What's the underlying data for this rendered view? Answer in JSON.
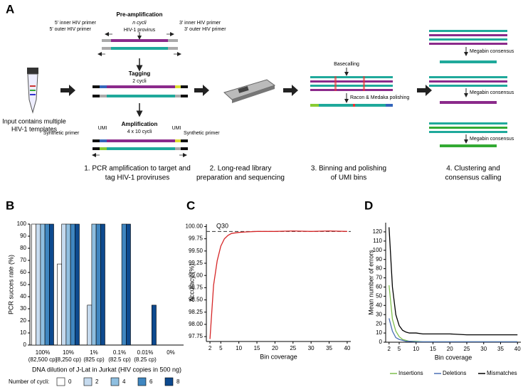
{
  "diagram": {
    "label": "A",
    "input": [
      "Input contains multiple",
      "HIV-1 templates"
    ],
    "preamp": {
      "title": "Pre-amplification",
      "cycles": "n cycli",
      "target": "HIV-1 provirus",
      "inner5": "5' inner HIV primer",
      "outer5": "5' outer HIV primer",
      "inner3": "3' inner HIV primer",
      "outer3": "3' outer HIV primer"
    },
    "tagging": {
      "title": "Tagging",
      "cycles": "2 cycli"
    },
    "amplification": {
      "title": "Amplification",
      "cycles": "4 x 10 cycli",
      "umi_left": "UMI",
      "umi_right": "UMI",
      "primer_left": "Synthetic primer",
      "primer_right": "Synthetic primer"
    },
    "basecalling": "Basecalling",
    "polishing": "Racon & Medaka polishing",
    "megabin": [
      "Megabin consensus",
      "Megabin consensus",
      "Megabin consensus"
    ],
    "steps": [
      [
        "1. PCR amplification to target and",
        "tag HIV-1 proviruses"
      ],
      [
        "2. Long-read library",
        "preparation and sequencing"
      ],
      [
        "3. Binning and polishing",
        "of UMI bins"
      ],
      [
        "4. Clustering and",
        "consensus calling"
      ]
    ]
  },
  "chart_data": [
    {
      "type": "bar",
      "panel": "B",
      "categories": [
        "100%",
        "10%",
        "1%",
        "0.1%",
        "0.01%",
        "0%"
      ],
      "category_copies": [
        "(82,500 cp)",
        "(8,250 cp)",
        "(825 cp)",
        "(82.5 cp)",
        "(8.25 cp)",
        null
      ],
      "x_label": "DNA dilution of J-Lat in Jurkat (HIV copies in 500 ng)",
      "y_label": "PCR succes rate (%)",
      "legend_title": "Number of cycli:",
      "series": [
        {
          "name": "0",
          "color": "#ffffff",
          "values": [
            100,
            67,
            0,
            0,
            0,
            0
          ]
        },
        {
          "name": "2",
          "color": "#c6dbef",
          "values": [
            100,
            100,
            33,
            0,
            0,
            0
          ]
        },
        {
          "name": "4",
          "color": "#8fbfe0",
          "values": [
            100,
            100,
            100,
            0,
            0,
            0
          ]
        },
        {
          "name": "6",
          "color": "#3f86c0",
          "values": [
            100,
            100,
            100,
            100,
            0,
            0
          ]
        },
        {
          "name": "8",
          "color": "#0d4a8f",
          "values": [
            100,
            100,
            100,
            100,
            33,
            0
          ]
        }
      ],
      "ylim": [
        0,
        100
      ],
      "yticks": [
        0,
        10,
        20,
        30,
        40,
        50,
        60,
        70,
        80,
        90,
        100
      ]
    },
    {
      "type": "line",
      "panel": "C",
      "x": [
        2,
        3,
        4,
        5,
        6,
        7,
        8,
        10,
        12,
        15,
        20,
        25,
        30,
        35,
        40
      ],
      "values": [
        97.7,
        98.8,
        99.3,
        99.6,
        99.75,
        99.82,
        99.86,
        99.88,
        99.89,
        99.9,
        99.9,
        99.91,
        99.9,
        99.91,
        99.9
      ],
      "color": "#d62728",
      "x_label": "Bin coverage",
      "y_label": "Accuracy (%)",
      "reference_line": {
        "value": 99.9,
        "label": "Q30"
      },
      "xlim": [
        1,
        41
      ],
      "xticks": [
        2,
        5,
        10,
        15,
        20,
        25,
        30,
        35,
        40
      ],
      "ylim": [
        97.65,
        100.05
      ],
      "yticks": [
        97.75,
        {
          "value": 98,
          "label": "98.00"
        },
        98.25,
        {
          "value": 98.5,
          "label": "98.50"
        },
        98.75,
        {
          "value": 99,
          "label": "99.00"
        },
        99.25,
        {
          "value": 99.5,
          "label": "99.50"
        },
        99.75,
        {
          "value": 100,
          "label": "100.00"
        }
      ]
    },
    {
      "type": "line",
      "panel": "D",
      "x": [
        2,
        3,
        4,
        5,
        6,
        7,
        8,
        10,
        12,
        15,
        20,
        25,
        30,
        35,
        40
      ],
      "series": [
        {
          "name": "Insertions",
          "color": "#7fbf4d",
          "values": [
            62,
            25,
            12,
            6,
            3,
            2,
            1,
            1,
            0.5,
            0.5,
            0.5,
            0.5,
            0.5,
            0.5,
            0.5
          ]
        },
        {
          "name": "Deletions",
          "color": "#4a6fb5",
          "values": [
            26,
            12,
            5,
            3,
            2,
            1,
            1,
            0.5,
            0.5,
            0.5,
            0.5,
            0.5,
            0.5,
            0.5,
            0.5
          ]
        },
        {
          "name": "Mismatches",
          "color": "#000000",
          "values": [
            125,
            60,
            30,
            18,
            13,
            11,
            10,
            10,
            9,
            9,
            9,
            8,
            8,
            8,
            8
          ]
        }
      ],
      "x_label": "Bin coverage",
      "y_label": "Mean number of errors",
      "xlim": [
        1,
        41
      ],
      "xticks": [
        2,
        5,
        10,
        15,
        20,
        25,
        30,
        35,
        40
      ],
      "ylim": [
        0,
        130
      ],
      "yticks": [
        0,
        10,
        20,
        30,
        40,
        50,
        60,
        70,
        80,
        90,
        100,
        110,
        120
      ]
    }
  ]
}
